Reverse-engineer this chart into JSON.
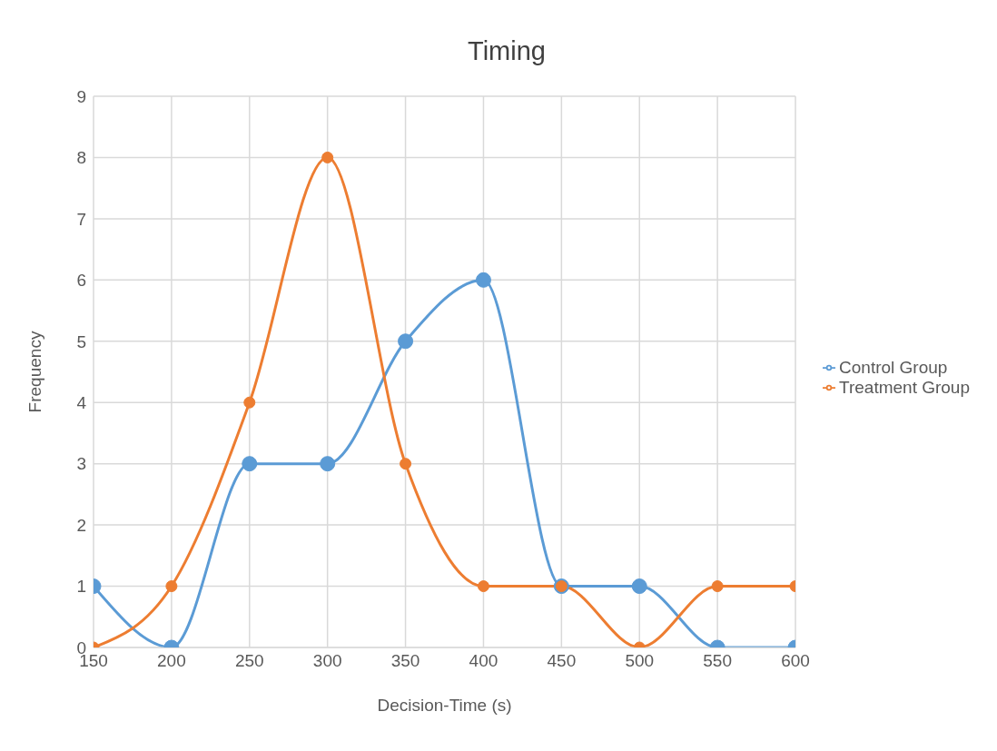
{
  "chart_data": {
    "type": "line",
    "title": "Timing",
    "xlabel": "Decision-Time (s)",
    "ylabel": "Frequency",
    "x": [
      150,
      200,
      250,
      300,
      350,
      400,
      450,
      500,
      550,
      600
    ],
    "series": [
      {
        "name": "Control Group",
        "color": "#5b9bd5",
        "values": [
          1,
          0,
          3,
          3,
          5,
          6,
          1,
          1,
          0,
          0
        ]
      },
      {
        "name": "Treatment Group",
        "color": "#ed7d31",
        "values": [
          0,
          1,
          4,
          8,
          3,
          1,
          1,
          0,
          1,
          1
        ]
      }
    ],
    "xlim": [
      150,
      600
    ],
    "xticks": [
      150,
      200,
      250,
      300,
      350,
      400,
      450,
      500,
      550,
      600
    ],
    "ylim": [
      0,
      9
    ],
    "yticks": [
      0,
      1,
      2,
      3,
      4,
      5,
      6,
      7,
      8,
      9
    ],
    "grid": true,
    "legend": "right",
    "marker": "circle",
    "line_style": "solid"
  }
}
